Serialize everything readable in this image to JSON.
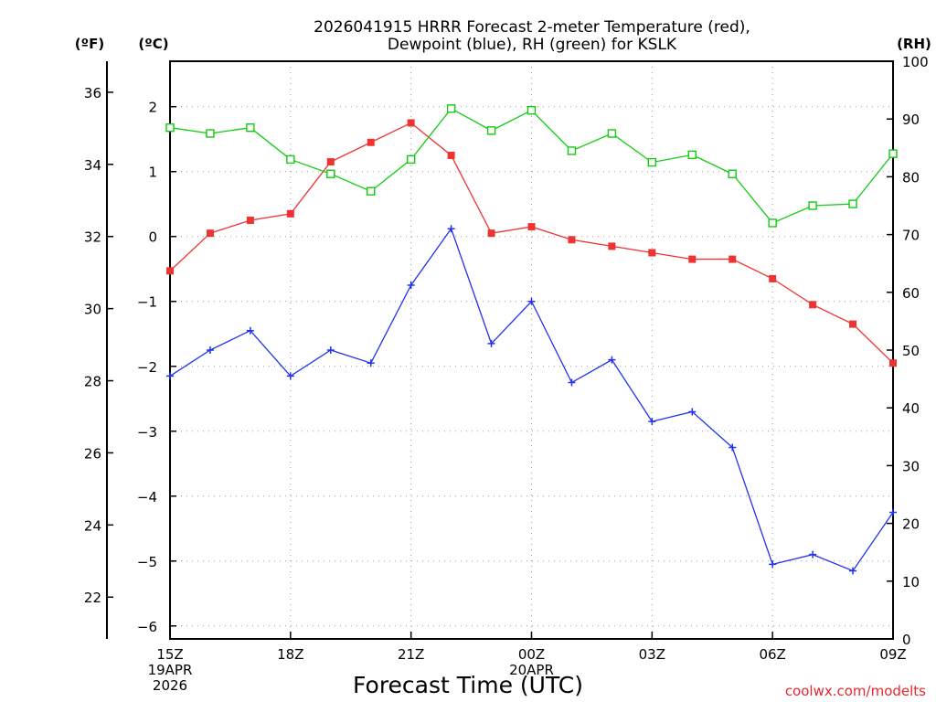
{
  "chart_data": {
    "type": "line",
    "title_lines": [
      "2026041915 HRRR Forecast 2-meter Temperature (red),",
      "Dewpoint (blue), RH (green) for KSLK"
    ],
    "x": [
      0,
      1,
      2,
      3,
      4,
      5,
      6,
      7,
      8,
      9,
      10,
      11,
      12,
      13,
      14,
      15,
      16,
      17,
      18
    ],
    "x_ticks": [
      {
        "x": 0,
        "lines": [
          "15Z",
          "19APR",
          "2026"
        ]
      },
      {
        "x": 3,
        "lines": [
          "18Z"
        ]
      },
      {
        "x": 6,
        "lines": [
          "21Z"
        ]
      },
      {
        "x": 9,
        "lines": [
          "00Z",
          "20APR"
        ]
      },
      {
        "x": 12,
        "lines": [
          "03Z"
        ]
      },
      {
        "x": 15,
        "lines": [
          "06Z"
        ]
      },
      {
        "x": 18,
        "lines": [
          "09Z"
        ]
      }
    ],
    "xlabel": "Forecast Time (UTC)",
    "y_celsius": {
      "unit": "(ºC)",
      "range": [
        -6.2,
        2.7
      ],
      "ticks": [
        "2",
        "1",
        "0",
        "−1",
        "−2",
        "−3",
        "−4",
        "−5",
        "−6"
      ],
      "tick_values": [
        2,
        1,
        0,
        -1,
        -2,
        -3,
        -4,
        -5,
        -6
      ]
    },
    "y_fahrenheit": {
      "unit": "(ºF)",
      "ticks": [
        "36",
        "34",
        "32",
        "30",
        "28",
        "26",
        "24",
        "22"
      ],
      "tick_values": [
        36,
        34,
        32,
        30,
        28,
        26,
        24,
        22
      ]
    },
    "y_rh": {
      "unit": "(RH)",
      "range": [
        0,
        100
      ],
      "ticks": [
        "100",
        "90",
        "80",
        "70",
        "60",
        "50",
        "40",
        "30",
        "20",
        "10",
        "0"
      ],
      "tick_values": [
        100,
        90,
        80,
        70,
        60,
        50,
        40,
        30,
        20,
        10,
        0
      ]
    },
    "series": [
      {
        "name": "Temperature",
        "axis": "celsius",
        "color": "#ee3333",
        "marker": "filled-square",
        "values": [
          -0.53,
          0.05,
          0.25,
          0.35,
          1.15,
          1.45,
          1.75,
          1.25,
          0.05,
          0.15,
          -0.05,
          -0.15,
          -0.25,
          -0.35,
          -0.35,
          -0.65,
          -1.05,
          -1.35,
          -1.95
        ]
      },
      {
        "name": "Dewpoint",
        "axis": "celsius",
        "color": "#2233ee",
        "marker": "plus",
        "values": [
          -2.15,
          -1.75,
          -1.45,
          -2.15,
          -1.75,
          -1.95,
          -0.75,
          0.12,
          -1.65,
          -1.0,
          -2.25,
          -1.9,
          -2.85,
          -2.7,
          -3.25,
          -5.05,
          -4.9,
          -5.15,
          -4.25
        ]
      },
      {
        "name": "RH",
        "axis": "rh",
        "color": "#11cc11",
        "marker": "open-square",
        "values": [
          88.5,
          87.5,
          88.5,
          83,
          80.5,
          77.5,
          83,
          91.8,
          88,
          91.5,
          84.5,
          87.5,
          82.5,
          83.8,
          80.5,
          72,
          75,
          75.3,
          84
        ]
      }
    ]
  },
  "credit": "coolwx.com/modelts"
}
